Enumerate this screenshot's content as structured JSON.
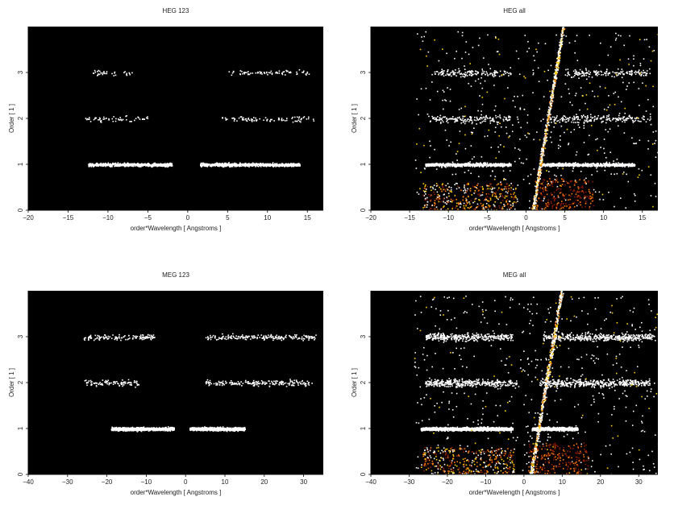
{
  "chart_data": [
    {
      "type": "heatmap",
      "title": "HEG 123",
      "xlabel": "order*Wavelength [ Angstroms ]",
      "ylabel": "Order [ 1 ]",
      "xlim": [
        -20,
        17
      ],
      "ylim": [
        0,
        4
      ],
      "xticks": [
        -20,
        -15,
        -10,
        -5,
        0,
        5,
        10,
        15
      ],
      "yticks": [
        0,
        1,
        2,
        3
      ],
      "bands": [
        {
          "order": 1,
          "x_ranges": [
            [
              -12.5,
              -2
            ],
            [
              1.5,
              14
            ]
          ],
          "intensity": "high"
        },
        {
          "order": 2,
          "x_ranges": [
            [
              -13,
              -5
            ],
            [
              4,
              16
            ]
          ],
          "intensity": "low"
        },
        {
          "order": 3,
          "x_ranges": [
            [
              -12,
              -7
            ],
            [
              5,
              15.5
            ]
          ],
          "intensity": "low"
        }
      ],
      "zero_order_streak": false
    },
    {
      "type": "heatmap",
      "title": "HEG all",
      "xlabel": "order*Wavelength [ Angstroms ]",
      "ylabel": "Order [ 1 ]",
      "xlim": [
        -20,
        17
      ],
      "ylim": [
        0,
        4
      ],
      "xticks": [
        -20,
        -15,
        -10,
        -5,
        0,
        5,
        10,
        15
      ],
      "yticks": [
        0,
        1,
        2,
        3
      ],
      "bands": [
        {
          "order": 1,
          "x_ranges": [
            [
              -13,
              -2
            ],
            [
              2,
              14
            ]
          ],
          "intensity": "high"
        },
        {
          "order": 2,
          "x_ranges": [
            [
              -13,
              -2
            ],
            [
              3,
              16
            ]
          ],
          "intensity": "medium"
        },
        {
          "order": 3,
          "x_ranges": [
            [
              -12,
              -2
            ],
            [
              5,
              16
            ]
          ],
          "intensity": "medium"
        }
      ],
      "zero_order_streak": true
    },
    {
      "type": "heatmap",
      "title": "MEG 123",
      "xlabel": "order*Wavelength [ Angstroms ]",
      "ylabel": "Order [ 1 ]",
      "xlim": [
        -40,
        35
      ],
      "ylim": [
        0,
        4
      ],
      "xticks": [
        -40,
        -30,
        -20,
        -10,
        0,
        10,
        20,
        30
      ],
      "yticks": [
        0,
        1,
        2,
        3
      ],
      "bands": [
        {
          "order": 1,
          "x_ranges": [
            [
              -19,
              -3
            ],
            [
              1,
              15
            ]
          ],
          "intensity": "high"
        },
        {
          "order": 2,
          "x_ranges": [
            [
              -26,
              -12
            ],
            [
              5,
              32
            ]
          ],
          "intensity": "low"
        },
        {
          "order": 3,
          "x_ranges": [
            [
              -26,
              -8
            ],
            [
              5,
              33
            ]
          ],
          "intensity": "low"
        }
      ],
      "zero_order_streak": false
    },
    {
      "type": "heatmap",
      "title": "MEG all",
      "xlabel": "order*Wavelength [ Angstroms ]",
      "ylabel": "Order [ 1 ]",
      "xlim": [
        -40,
        35
      ],
      "ylim": [
        0,
        4
      ],
      "xticks": [
        -40,
        -30,
        -20,
        -10,
        0,
        10,
        20,
        30
      ],
      "yticks": [
        0,
        1,
        2,
        3
      ],
      "bands": [
        {
          "order": 1,
          "x_ranges": [
            [
              -27,
              -3
            ],
            [
              2,
              14
            ]
          ],
          "intensity": "high"
        },
        {
          "order": 2,
          "x_ranges": [
            [
              -26,
              -2
            ],
            [
              4,
              33
            ]
          ],
          "intensity": "medium"
        },
        {
          "order": 3,
          "x_ranges": [
            [
              -26,
              -3
            ],
            [
              5,
              34
            ]
          ],
          "intensity": "medium"
        }
      ],
      "zero_order_streak": true
    }
  ],
  "colors": {
    "background": "#000000",
    "hot_low": "#8b1a00",
    "hot_mid": "#ff7a00",
    "hot_high": "#ffd000",
    "hot_peak": "#ffffff"
  }
}
